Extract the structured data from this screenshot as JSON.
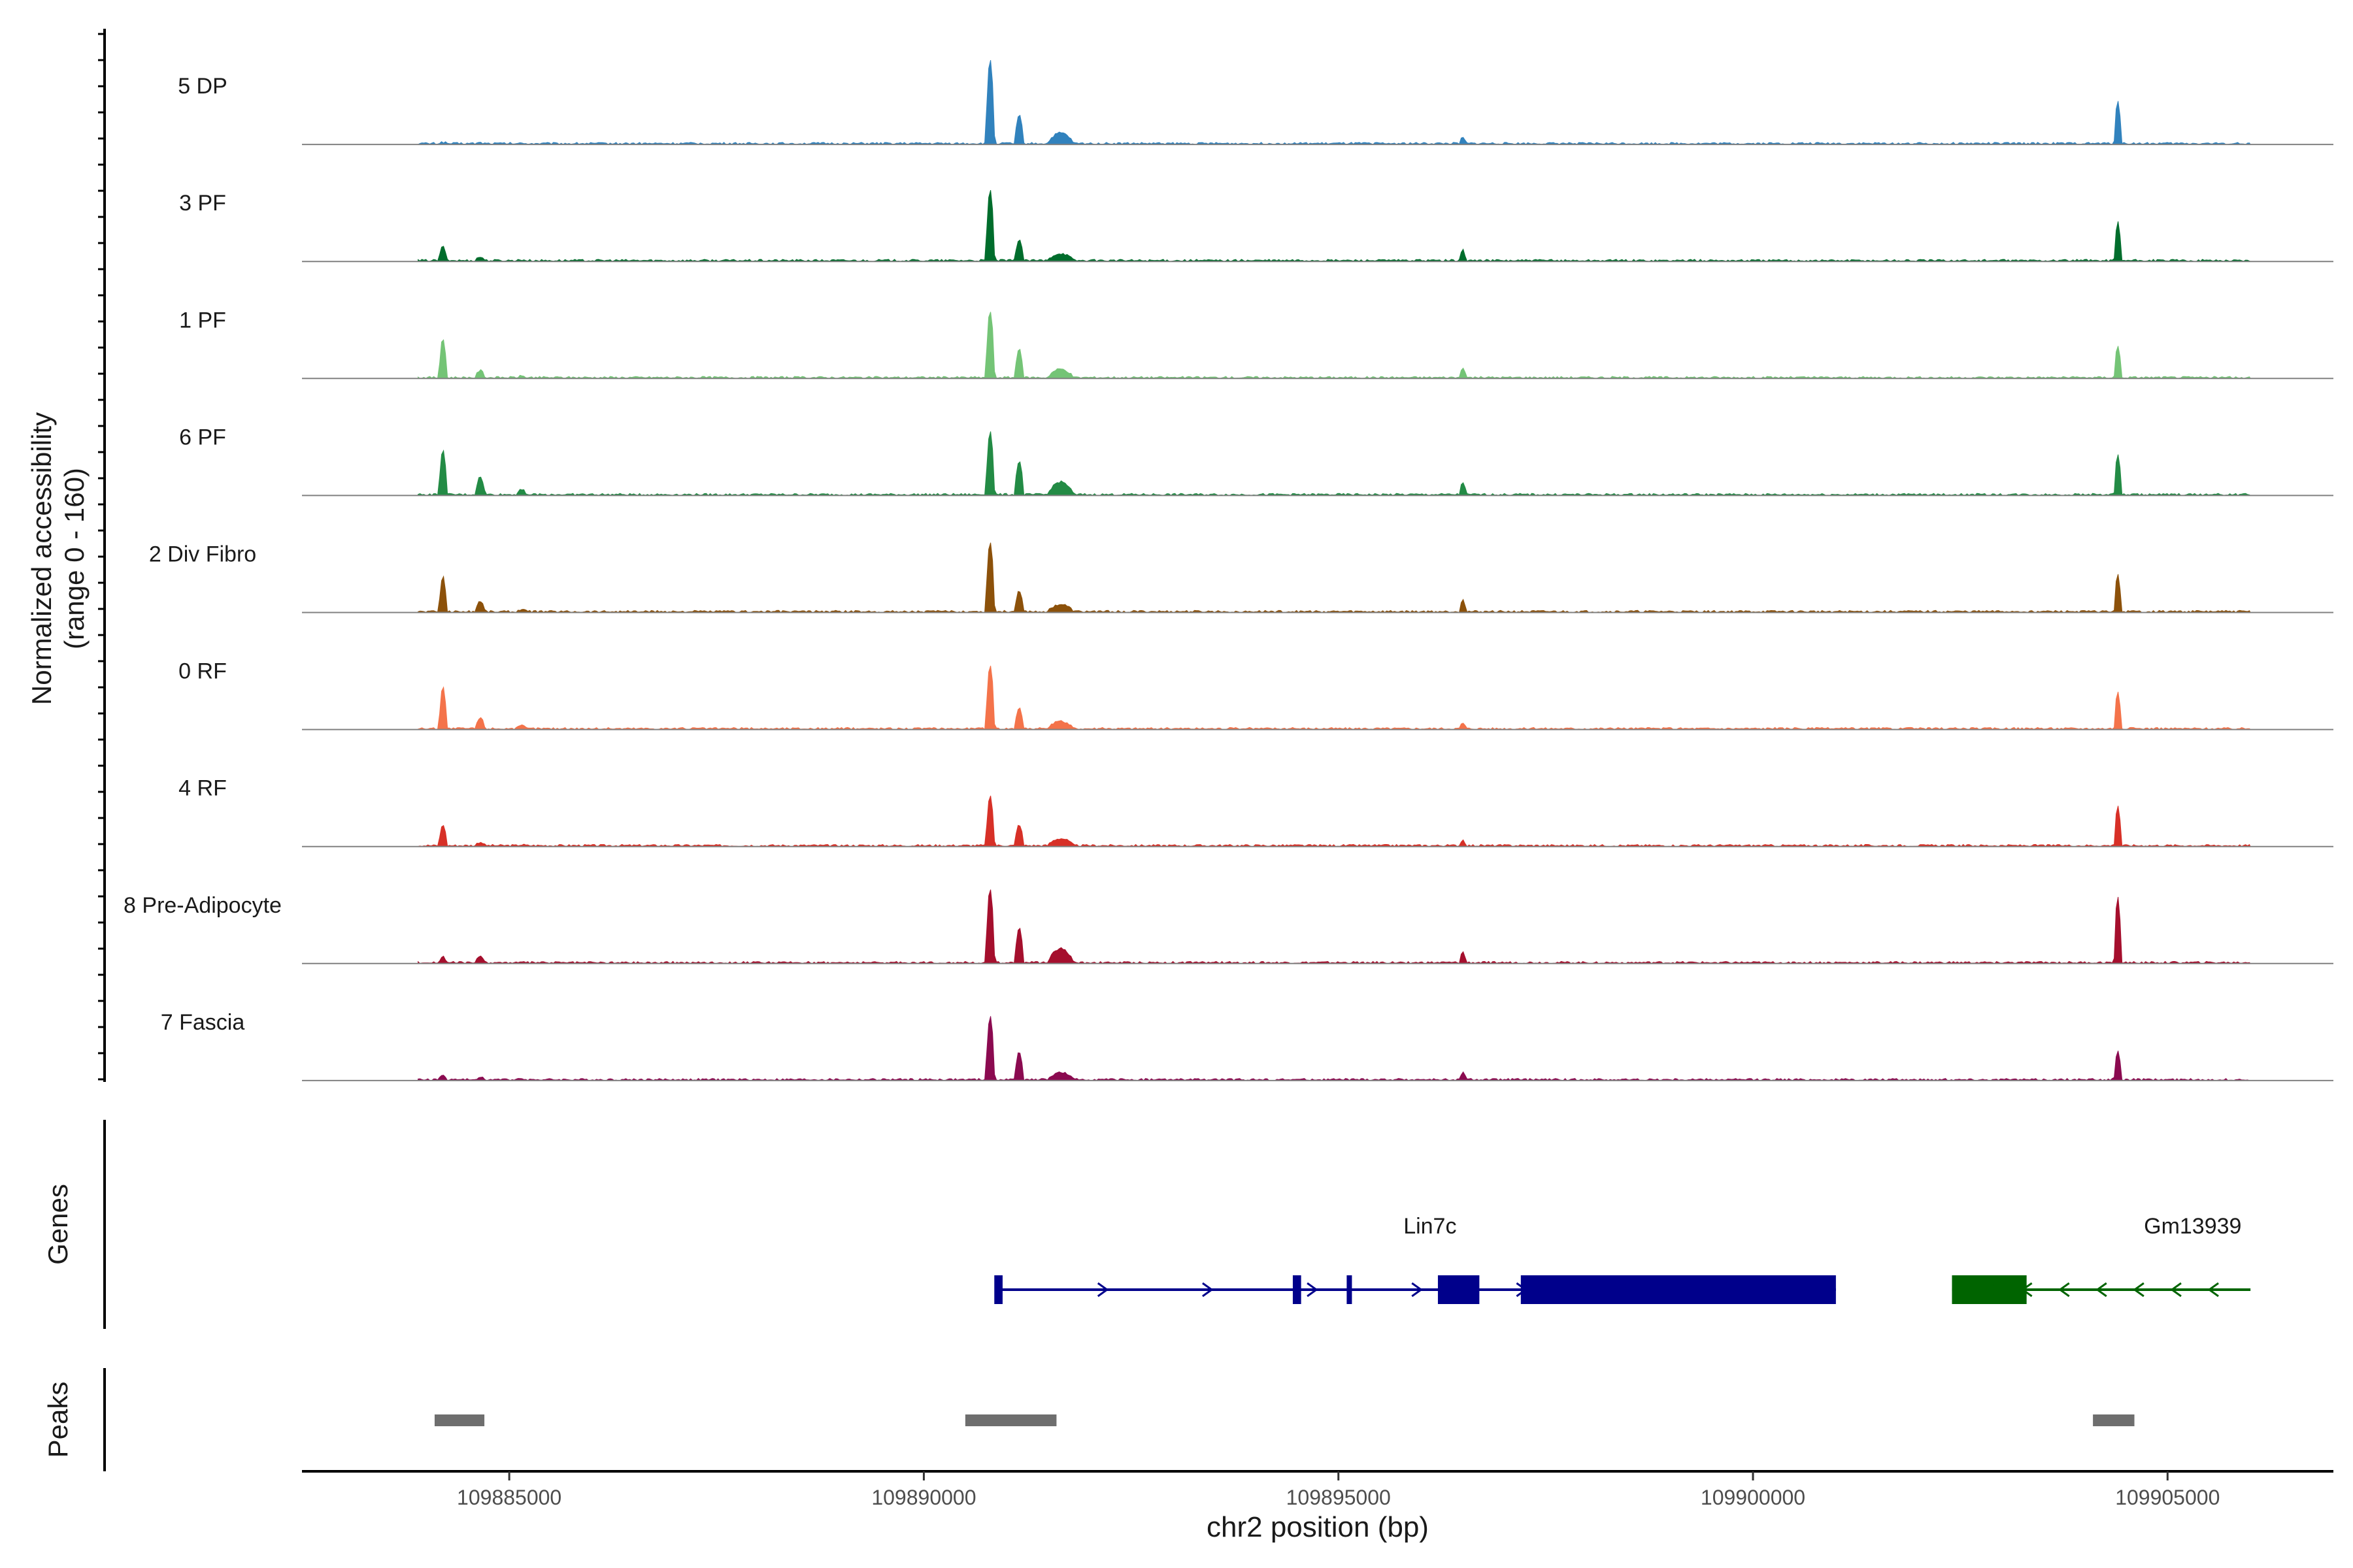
{
  "chart_data": {
    "type": "area",
    "title": "",
    "xlabel": "chr2 position (bp)",
    "ylabel": "Normalized accessibility",
    "ylabel_range": "(range 0 - 160)",
    "ylim": [
      0,
      160
    ],
    "xlim": [
      109882500,
      109907000
    ],
    "x_ticks": [
      109885000,
      109890000,
      109895000,
      109900000,
      109905000
    ],
    "x_tick_labels": [
      "109885000",
      "109890000",
      "109895000",
      "109900000",
      "109905000"
    ],
    "peak_positions": {
      "p1": 109884200,
      "p1b": 109884650,
      "p1c": 109885150,
      "p2": 109890800,
      "p2b": 109891150,
      "p2c": 109891650,
      "p3": 109896500,
      "p4": 109904400
    },
    "series": [
      {
        "name": "5 DP",
        "color": "#3182bd",
        "peaks": {
          "p1": 2,
          "p1b": 1,
          "p1c": 0,
          "p2": 120,
          "p2b": 40,
          "p2c": 15,
          "p3": 8,
          "p4": 62
        }
      },
      {
        "name": "3 PF",
        "color": "#006d2c",
        "peaks": {
          "p1": 20,
          "p1b": 5,
          "p1c": 1,
          "p2": 100,
          "p2b": 30,
          "p2c": 10,
          "p3": 15,
          "p4": 55
        }
      },
      {
        "name": "1 PF",
        "color": "#74c476",
        "peaks": {
          "p1": 55,
          "p1b": 10,
          "p1c": 2,
          "p2": 95,
          "p2b": 40,
          "p2c": 12,
          "p3": 15,
          "p4": 45
        }
      },
      {
        "name": "6 PF",
        "color": "#238b45",
        "peaks": {
          "p1": 65,
          "p1b": 25,
          "p1c": 8,
          "p2": 90,
          "p2b": 48,
          "p2c": 18,
          "p3": 18,
          "p4": 58
        }
      },
      {
        "name": "2 Div Fibro",
        "color": "#8c510a",
        "peaks": {
          "p1": 50,
          "p1b": 15,
          "p1c": 3,
          "p2": 100,
          "p2b": 30,
          "p2c": 10,
          "p3": 18,
          "p4": 52
        }
      },
      {
        "name": "0 RF",
        "color": "#f4734a",
        "peaks": {
          "p1": 60,
          "p1b": 15,
          "p1c": 4,
          "p2": 90,
          "p2b": 30,
          "p2c": 10,
          "p3": 8,
          "p4": 52
        }
      },
      {
        "name": "4 RF",
        "color": "#d73027",
        "peaks": {
          "p1": 30,
          "p1b": 5,
          "p1c": 1,
          "p2": 70,
          "p2b": 30,
          "p2c": 10,
          "p3": 8,
          "p4": 57
        }
      },
      {
        "name": "8 Pre-Adipocyte",
        "color": "#a50f2d",
        "peaks": {
          "p1": 8,
          "p1b": 8,
          "p1c": 0,
          "p2": 105,
          "p2b": 50,
          "p2c": 20,
          "p3": 15,
          "p4": 95
        }
      },
      {
        "name": "7 Fascia",
        "color": "#8b0a50",
        "peaks": {
          "p1": 6,
          "p1b": 3,
          "p1c": 2,
          "p2": 90,
          "p2b": 40,
          "p2c": 10,
          "p3": 10,
          "p4": 40
        }
      }
    ],
    "genes_track_label": "Genes",
    "genes": [
      {
        "name": "Lin7c",
        "strand": "+",
        "start": 109890900,
        "end": 109901000,
        "color": "#00008b",
        "exons": [
          [
            109890850,
            109890950
          ],
          [
            109894450,
            109894550
          ],
          [
            109895100,
            109895150
          ],
          [
            109896200,
            109896700
          ],
          [
            109897200,
            109901000
          ]
        ]
      },
      {
        "name": "Gm13939",
        "strand": "-",
        "start": 109902400,
        "end": 109906000,
        "color": "#006400",
        "exons": [
          [
            109902400,
            109903300
          ]
        ]
      }
    ],
    "peaks_track_label": "Peaks",
    "peaks": [
      [
        109884100,
        109884700
      ],
      [
        109890500,
        109891600
      ],
      [
        109904100,
        109904600
      ]
    ]
  }
}
